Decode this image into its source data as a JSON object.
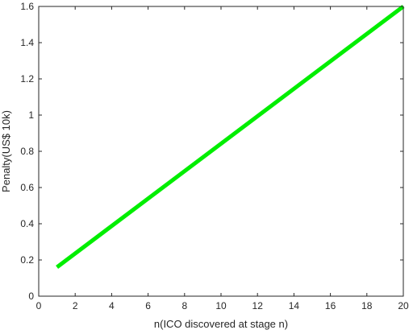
{
  "chart_data": {
    "type": "line",
    "title": "",
    "xlabel": "n(ICO discovered at stage n)",
    "ylabel": "Penalty(US$ 10k)",
    "xlim": [
      0,
      20
    ],
    "ylim": [
      0,
      1.6
    ],
    "xticks": [
      0,
      2,
      4,
      6,
      8,
      10,
      12,
      14,
      16,
      18,
      20
    ],
    "xtick_labels": [
      "0",
      "2",
      "4",
      "6",
      "8",
      "10",
      "12",
      "14",
      "16",
      "18",
      "20"
    ],
    "yticks": [
      0,
      0.2,
      0.4,
      0.6,
      0.8,
      1,
      1.2,
      1.4,
      1.6
    ],
    "ytick_labels": [
      "0",
      "0.2",
      "0.4",
      "0.6",
      "0.8",
      "1",
      "1.2",
      "1.4",
      "1.6"
    ],
    "grid": false,
    "legend": "none",
    "series": [
      {
        "color": "#00ee00",
        "x": [
          1,
          20
        ],
        "y": [
          0.16,
          1.6
        ]
      }
    ]
  }
}
